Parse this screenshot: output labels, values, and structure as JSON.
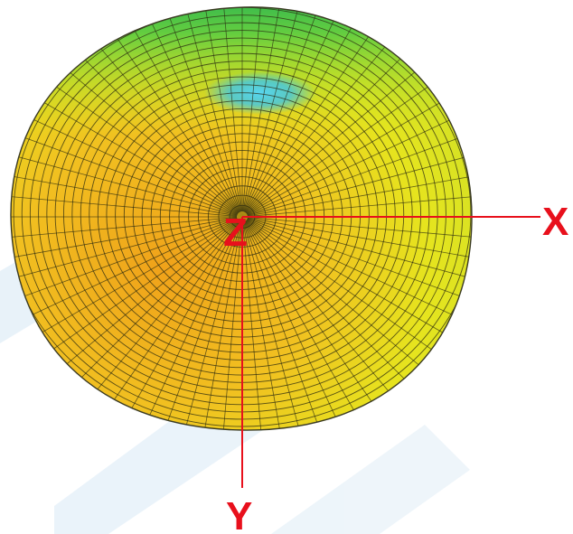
{
  "axes": {
    "x_label": "X",
    "y_label": "Y",
    "z_label": "Z"
  },
  "colors": {
    "axis": "#e8101c",
    "pattern_high": "#f0a21a",
    "pattern_mid": "#e4e81c",
    "pattern_low_green": "#3cc45a",
    "pattern_min": "#3ec6e8",
    "mesh": "#2a2a10",
    "watermark": "#e4f0f8"
  }
}
